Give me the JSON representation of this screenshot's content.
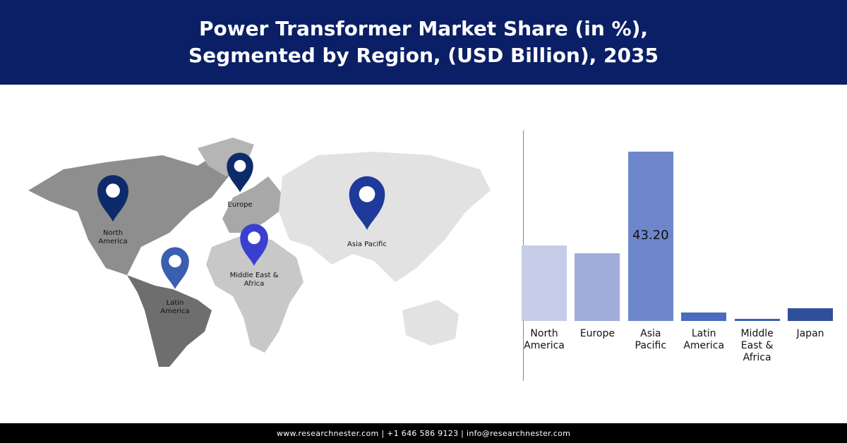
{
  "chart_data": {
    "type": "bar",
    "title": "Power Transformer Market Share (in %), Segmented by Region, (USD Billion), 2035",
    "categories": [
      "North America",
      "Europe",
      "Asia Pacific",
      "Latin America",
      "Middle East & Africa",
      "Japan"
    ],
    "values": [
      19.3,
      17.3,
      43.2,
      2.2,
      0.5,
      3.2
    ],
    "value_labels": [
      null,
      null,
      "43.20",
      null,
      null,
      null
    ],
    "colors": [
      "#c5cde8",
      "#a0acd9",
      "#6e86cc",
      "#4a6bc0",
      "#3d5fb8",
      "#2e4f9a"
    ]
  },
  "map": {
    "pins": [
      {
        "label": "North America",
        "color": "#0d2a6b"
      },
      {
        "label": "Europe",
        "color": "#0d2a6b"
      },
      {
        "label": "Asia Pacific",
        "color": "#1e3a9a"
      },
      {
        "label": "Middle East & Africa",
        "color": "#3a3fcf"
      },
      {
        "label": "Latin America",
        "color": "#3a5fb0"
      }
    ]
  },
  "footer": "www.researchnester.com | +1 646 586 9123 | info@researchnester.com"
}
